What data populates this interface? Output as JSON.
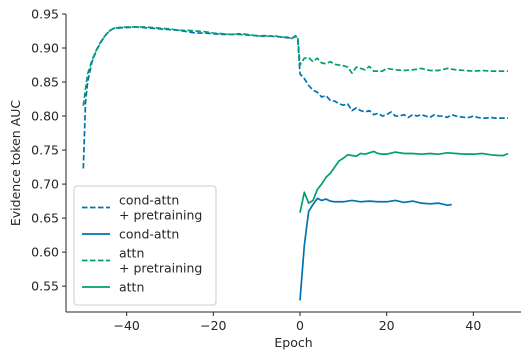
{
  "chart_data": {
    "type": "line",
    "title": "",
    "xlabel": "Epoch",
    "ylabel": "Evidence token AUC",
    "xlim": [
      -54,
      51
    ],
    "ylim": [
      0.512,
      0.95
    ],
    "xticks": [
      -40,
      -20,
      0,
      20,
      40
    ],
    "yticks": [
      0.55,
      0.6,
      0.65,
      0.7,
      0.75,
      0.8,
      0.85,
      0.9,
      0.95
    ],
    "xtick_labels": [
      "−40",
      "−20",
      "0",
      "20",
      "40"
    ],
    "ytick_labels": [
      "0.55",
      "0.60",
      "0.65",
      "0.70",
      "0.75",
      "0.80",
      "0.85",
      "0.90",
      "0.95"
    ],
    "grid": false,
    "legend_position": "lower-left",
    "series": [
      {
        "name": "cond-attn\n+ pretraining",
        "color": "#0173b2",
        "linestyle": "dashed",
        "points": [
          [
            -50,
            0.723
          ],
          [
            -49.5,
            0.82
          ],
          [
            -49,
            0.85
          ],
          [
            -48,
            0.88
          ],
          [
            -47,
            0.896
          ],
          [
            -46,
            0.908
          ],
          [
            -45,
            0.918
          ],
          [
            -44,
            0.925
          ],
          [
            -43,
            0.929
          ],
          [
            -42,
            0.929
          ],
          [
            -41,
            0.93
          ],
          [
            -40,
            0.93
          ],
          [
            -38,
            0.931
          ],
          [
            -36,
            0.93
          ],
          [
            -34,
            0.929
          ],
          [
            -32,
            0.928
          ],
          [
            -30,
            0.927
          ],
          [
            -28,
            0.926
          ],
          [
            -26,
            0.924
          ],
          [
            -24,
            0.922
          ],
          [
            -22,
            0.922
          ],
          [
            -20,
            0.921
          ],
          [
            -18,
            0.92
          ],
          [
            -16,
            0.92
          ],
          [
            -14,
            0.92
          ],
          [
            -12,
            0.919
          ],
          [
            -10,
            0.918
          ],
          [
            -8,
            0.918
          ],
          [
            -6,
            0.917
          ],
          [
            -4,
            0.916
          ],
          [
            -3,
            0.916
          ],
          [
            -2,
            0.914
          ],
          [
            -1,
            0.918
          ],
          [
            -0.5,
            0.912
          ],
          [
            0,
            0.862
          ],
          [
            1,
            0.855
          ],
          [
            2,
            0.845
          ],
          [
            3,
            0.838
          ],
          [
            4,
            0.835
          ],
          [
            5,
            0.828
          ],
          [
            6,
            0.83
          ],
          [
            7,
            0.823
          ],
          [
            8,
            0.822
          ],
          [
            9,
            0.818
          ],
          [
            10,
            0.816
          ],
          [
            11,
            0.818
          ],
          [
            12,
            0.808
          ],
          [
            13,
            0.812
          ],
          [
            14,
            0.808
          ],
          [
            15,
            0.806
          ],
          [
            16,
            0.808
          ],
          [
            17,
            0.802
          ],
          [
            18,
            0.804
          ],
          [
            19,
            0.8
          ],
          [
            20,
            0.802
          ],
          [
            21,
            0.806
          ],
          [
            22,
            0.8
          ],
          [
            23,
            0.8
          ],
          [
            24,
            0.802
          ],
          [
            25,
            0.798
          ],
          [
            26,
            0.802
          ],
          [
            27,
            0.8
          ],
          [
            28,
            0.802
          ],
          [
            29,
            0.8
          ],
          [
            30,
            0.798
          ],
          [
            31,
            0.802
          ],
          [
            32,
            0.8
          ],
          [
            33,
            0.8
          ],
          [
            34,
            0.798
          ],
          [
            35,
            0.802
          ],
          [
            36,
            0.8
          ],
          [
            37,
            0.799
          ],
          [
            38,
            0.798
          ],
          [
            39,
            0.798
          ],
          [
            40,
            0.8
          ],
          [
            41,
            0.798
          ],
          [
            42,
            0.797
          ],
          [
            43,
            0.797
          ],
          [
            44,
            0.798
          ],
          [
            45,
            0.797
          ],
          [
            46,
            0.797
          ],
          [
            47,
            0.797
          ],
          [
            48,
            0.797
          ]
        ]
      },
      {
        "name": "cond-attn",
        "color": "#0173b2",
        "linestyle": "solid",
        "points": [
          [
            0,
            0.529
          ],
          [
            1,
            0.61
          ],
          [
            2,
            0.66
          ],
          [
            3,
            0.67
          ],
          [
            4,
            0.679
          ],
          [
            5,
            0.676
          ],
          [
            6,
            0.678
          ],
          [
            7,
            0.675
          ],
          [
            8,
            0.674
          ],
          [
            10,
            0.674
          ],
          [
            12,
            0.676
          ],
          [
            14,
            0.674
          ],
          [
            16,
            0.675
          ],
          [
            18,
            0.674
          ],
          [
            20,
            0.674
          ],
          [
            22,
            0.676
          ],
          [
            24,
            0.673
          ],
          [
            26,
            0.675
          ],
          [
            28,
            0.672
          ],
          [
            30,
            0.671
          ],
          [
            32,
            0.672
          ],
          [
            34,
            0.669
          ],
          [
            35,
            0.67
          ]
        ]
      },
      {
        "name": "attn\n+ pretraining",
        "color": "#029e73",
        "linestyle": "dashed",
        "points": [
          [
            -50,
            0.815
          ],
          [
            -49.5,
            0.84
          ],
          [
            -49,
            0.862
          ],
          [
            -48,
            0.882
          ],
          [
            -47,
            0.897
          ],
          [
            -46,
            0.909
          ],
          [
            -45,
            0.918
          ],
          [
            -44,
            0.925
          ],
          [
            -43,
            0.929
          ],
          [
            -42,
            0.93
          ],
          [
            -40,
            0.931
          ],
          [
            -38,
            0.931
          ],
          [
            -36,
            0.931
          ],
          [
            -34,
            0.93
          ],
          [
            -32,
            0.929
          ],
          [
            -30,
            0.928
          ],
          [
            -28,
            0.926
          ],
          [
            -26,
            0.926
          ],
          [
            -24,
            0.925
          ],
          [
            -22,
            0.924
          ],
          [
            -20,
            0.922
          ],
          [
            -18,
            0.921
          ],
          [
            -16,
            0.92
          ],
          [
            -14,
            0.921
          ],
          [
            -12,
            0.92
          ],
          [
            -10,
            0.918
          ],
          [
            -8,
            0.917
          ],
          [
            -6,
            0.918
          ],
          [
            -4,
            0.916
          ],
          [
            -3,
            0.915
          ],
          [
            -2,
            0.914
          ],
          [
            -1,
            0.917
          ],
          [
            -0.5,
            0.915
          ],
          [
            0,
            0.875
          ],
          [
            1,
            0.885
          ],
          [
            2,
            0.886
          ],
          [
            3,
            0.88
          ],
          [
            4,
            0.885
          ],
          [
            5,
            0.878
          ],
          [
            6,
            0.877
          ],
          [
            7,
            0.88
          ],
          [
            8,
            0.876
          ],
          [
            9,
            0.875
          ],
          [
            10,
            0.874
          ],
          [
            11,
            0.872
          ],
          [
            12,
            0.863
          ],
          [
            13,
            0.872
          ],
          [
            14,
            0.87
          ],
          [
            15,
            0.868
          ],
          [
            16,
            0.873
          ],
          [
            17,
            0.866
          ],
          [
            18,
            0.866
          ],
          [
            19,
            0.866
          ],
          [
            20,
            0.87
          ],
          [
            22,
            0.868
          ],
          [
            24,
            0.867
          ],
          [
            26,
            0.868
          ],
          [
            28,
            0.87
          ],
          [
            30,
            0.867
          ],
          [
            32,
            0.867
          ],
          [
            34,
            0.87
          ],
          [
            36,
            0.868
          ],
          [
            38,
            0.867
          ],
          [
            40,
            0.866
          ],
          [
            42,
            0.867
          ],
          [
            44,
            0.866
          ],
          [
            46,
            0.866
          ],
          [
            48,
            0.866
          ]
        ]
      },
      {
        "name": "attn",
        "color": "#029e73",
        "linestyle": "solid",
        "points": [
          [
            0,
            0.658
          ],
          [
            1,
            0.688
          ],
          [
            2,
            0.672
          ],
          [
            3,
            0.676
          ],
          [
            4,
            0.692
          ],
          [
            5,
            0.7
          ],
          [
            6,
            0.71
          ],
          [
            7,
            0.716
          ],
          [
            8,
            0.725
          ],
          [
            9,
            0.734
          ],
          [
            10,
            0.738
          ],
          [
            11,
            0.743
          ],
          [
            12,
            0.742
          ],
          [
            13,
            0.741
          ],
          [
            14,
            0.745
          ],
          [
            15,
            0.744
          ],
          [
            16,
            0.746
          ],
          [
            17,
            0.748
          ],
          [
            18,
            0.745
          ],
          [
            19,
            0.744
          ],
          [
            20,
            0.744
          ],
          [
            22,
            0.747
          ],
          [
            24,
            0.745
          ],
          [
            26,
            0.745
          ],
          [
            28,
            0.744
          ],
          [
            30,
            0.745
          ],
          [
            32,
            0.744
          ],
          [
            34,
            0.746
          ],
          [
            36,
            0.745
          ],
          [
            38,
            0.744
          ],
          [
            40,
            0.744
          ],
          [
            42,
            0.745
          ],
          [
            44,
            0.743
          ],
          [
            46,
            0.742
          ],
          [
            47,
            0.742
          ],
          [
            48,
            0.745
          ]
        ]
      }
    ]
  }
}
